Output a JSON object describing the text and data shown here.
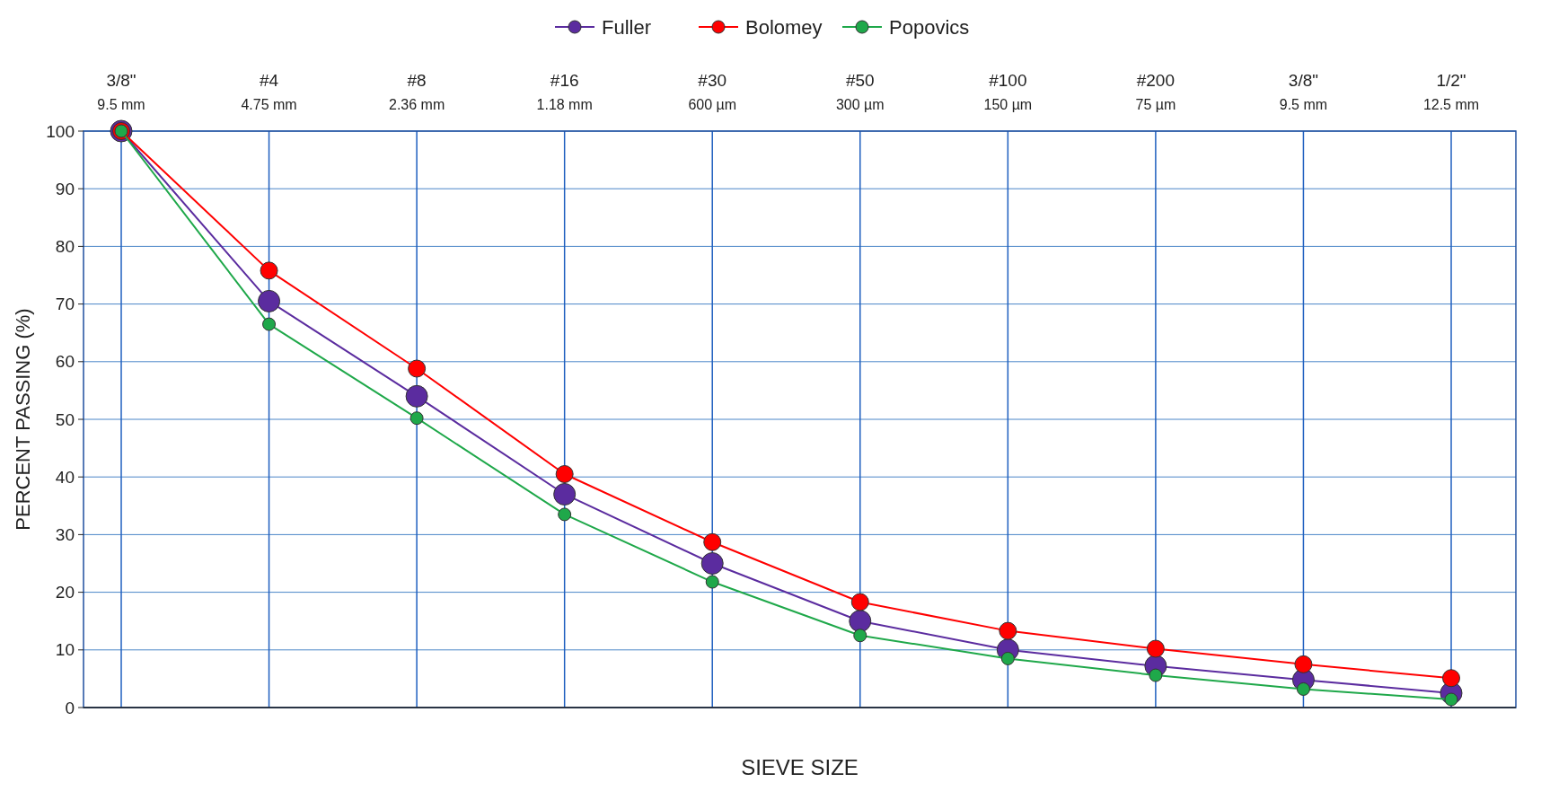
{
  "chart_data": {
    "type": "line",
    "xlabel": "SIEVE SIZE",
    "ylabel": "PERCENT PASSING (%)",
    "categories": [
      "3/8\"\n9.5 mm",
      "#4\n4.75 mm",
      "#8\n2.36 mm",
      "#16\n1.18 mm",
      "#30\n600 µm",
      "#50\n300 µm",
      "#100\n150 µm",
      "#200\n75 µm",
      "3/8\"\n9.5 mm",
      "1/2\"\n12.5 mm"
    ],
    "series": [
      {
        "name": "Fuller",
        "color": "#5b2c9f",
        "values": [
          100,
          70.5,
          54,
          37,
          25,
          15,
          10,
          7.2,
          4.8,
          2.5
        ]
      },
      {
        "name": "Bolomey",
        "color": "#ff0000",
        "values": [
          100,
          75.8,
          58.8,
          40.5,
          28.7,
          18.3,
          13.3,
          10.2,
          7.5,
          5.1
        ]
      },
      {
        "name": "Popovics",
        "color": "#1fa84a",
        "values": [
          100,
          66.5,
          50.2,
          33.5,
          21.8,
          12.5,
          8.5,
          5.6,
          3.2,
          1.4
        ]
      }
    ],
    "ylim": [
      0,
      100
    ],
    "yticks": [
      0,
      10,
      20,
      30,
      40,
      50,
      60,
      70,
      80,
      90,
      100
    ],
    "grid": true,
    "legend": "top",
    "marker": "circle",
    "line_style": "solid"
  }
}
